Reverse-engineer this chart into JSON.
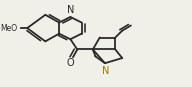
{
  "bg_color": "#f0efe8",
  "line_color": "#2a2a2a",
  "lw": 1.3,
  "dbl_off": 0.018,
  "figsize": [
    1.92,
    0.87
  ],
  "dpi": 100,
  "xlim": [
    0,
    1
  ],
  "ylim": [
    0,
    1
  ]
}
